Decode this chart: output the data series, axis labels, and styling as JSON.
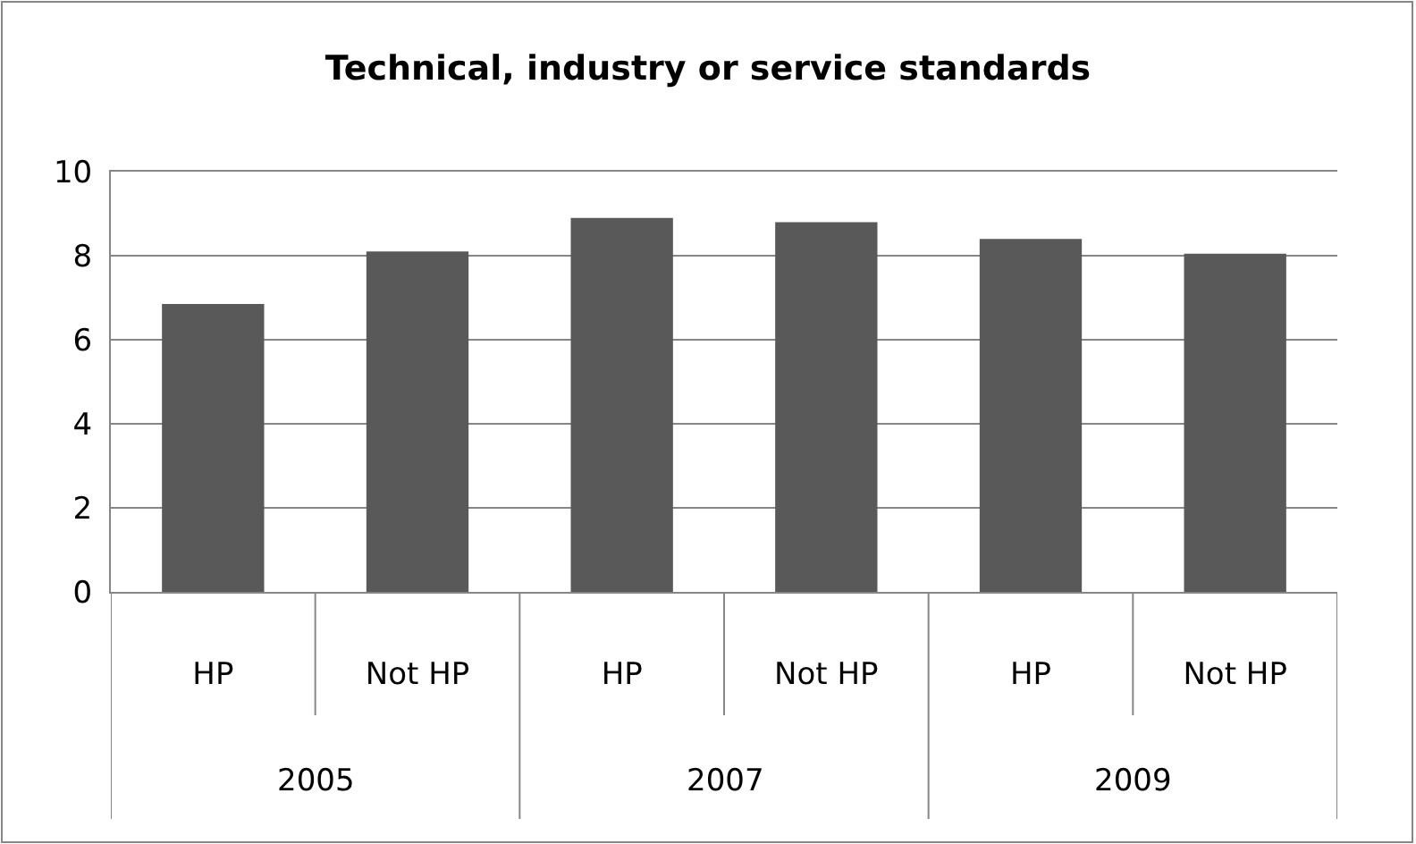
{
  "chart_data": {
    "type": "bar",
    "title": "Technical, industry or service standards",
    "categories": [
      "HP",
      "Not HP",
      "HP",
      "Not HP",
      "HP",
      "Not HP"
    ],
    "values": [
      6.85,
      8.1,
      8.9,
      8.8,
      8.4,
      8.05
    ],
    "color": "#595959",
    "ylim": [
      0,
      10
    ],
    "yticks": [
      0,
      2,
      4,
      6,
      8,
      10
    ],
    "grid": "y",
    "annotations": [
      "2005",
      "2007",
      "2009"
    ]
  }
}
